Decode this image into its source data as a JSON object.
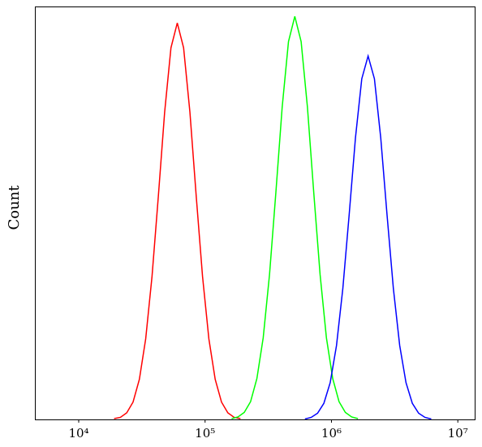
{
  "chart_data": {
    "type": "line",
    "x_scale": "log",
    "ylabel": "Count",
    "xlim": [
      4500,
      13600000
    ],
    "ylim": [
      0,
      100
    ],
    "xticks": [
      {
        "value": 10000,
        "label": "10⁴"
      },
      {
        "value": 100000,
        "label": "10⁵"
      },
      {
        "value": 1000000,
        "label": "10⁶"
      },
      {
        "value": 10000000,
        "label": "10⁷"
      }
    ],
    "series": [
      {
        "color": "#ff0000",
        "x": [
          19055,
          21380,
          23988,
          26915,
          30200,
          33884,
          38019,
          42658,
          47863,
          53703,
          60256,
          67608,
          75858,
          85114,
          95499,
          107152,
          120226,
          134896,
          151356,
          169824,
          190546
        ],
        "values": [
          0.2,
          0.5,
          1.6,
          4.2,
          9.7,
          19.5,
          34.6,
          54.0,
          74.4,
          90.0,
          96,
          90.0,
          74.4,
          54.0,
          34.6,
          19.5,
          9.7,
          4.2,
          1.6,
          0.5,
          0.2
        ]
      },
      {
        "color": "#00ff00",
        "x": [
          162181,
          181970,
          204174,
          229087,
          257040,
          288403,
          323594,
          363078,
          407380,
          457088,
          512861,
          575440,
          645654,
          724436,
          812831,
          912011,
          1023293,
          1148154,
          1288250,
          1445440,
          1621810
        ],
        "values": [
          0.2,
          0.6,
          1.7,
          4.3,
          9.9,
          19.8,
          35.1,
          54.9,
          75.6,
          91.5,
          97.6,
          91.5,
          75.6,
          54.9,
          35.1,
          19.8,
          9.9,
          4.3,
          1.7,
          0.6,
          0.2
        ]
      },
      {
        "color": "#0000ff",
        "x": [
          616595,
          691831,
          776247,
          870964,
          977237,
          1096478,
          1230269,
          1380384,
          1548817,
          1737801,
          1949845,
          2187762,
          2454709,
          2754229,
          3090295,
          3467369,
          3890451,
          4365158,
          4897788,
          5495409,
          6165950
        ],
        "values": [
          0.1,
          0.5,
          1.5,
          3.9,
          8.9,
          17.9,
          31.7,
          49.5,
          68.2,
          82.5,
          88,
          82.5,
          68.2,
          49.5,
          31.7,
          17.9,
          8.9,
          3.9,
          1.5,
          0.5,
          0.1
        ]
      }
    ]
  }
}
